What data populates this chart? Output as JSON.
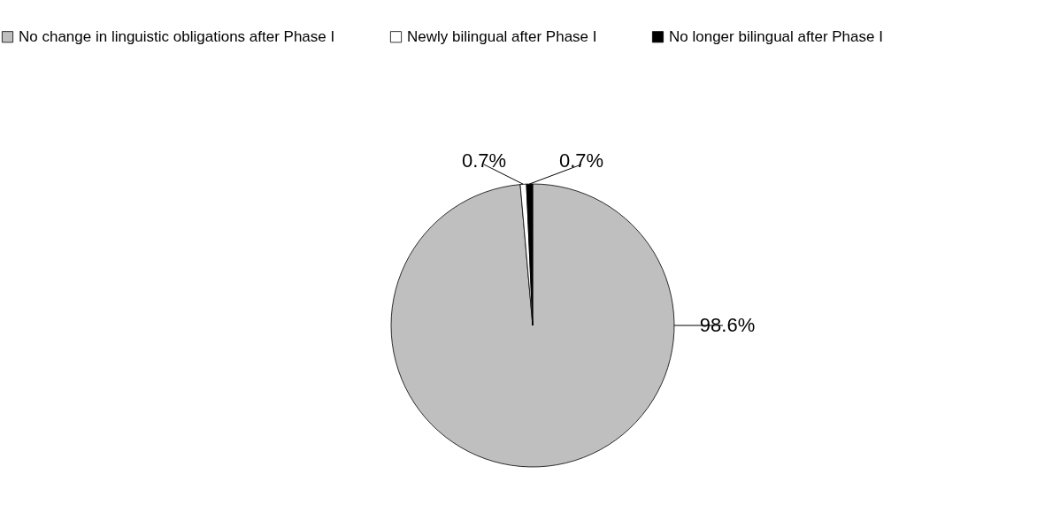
{
  "chart_data": {
    "type": "pie",
    "categories": [
      "No change in linguistic obligations after Phase I",
      "Newly bilingual after Phase I",
      "No longer bilingual after Phase I"
    ],
    "values": [
      98.6,
      0.7,
      0.7
    ],
    "colors": [
      "#bfbfbf",
      "#ffffff",
      "#000000"
    ],
    "value_labels": [
      "98.6%",
      "0.7%",
      "0.7%"
    ],
    "legend": "top"
  }
}
